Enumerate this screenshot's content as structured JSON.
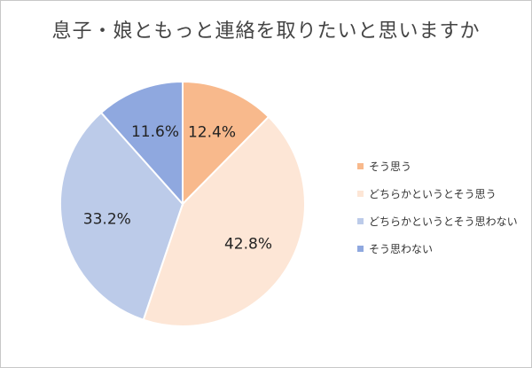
{
  "chart_data": {
    "type": "pie",
    "title": "息子・娘ともっと連絡を取りたいと思いますか",
    "slices": [
      {
        "name": "そう思う",
        "value": 12.4,
        "label": "12.4%",
        "color": "#f8b98c"
      },
      {
        "name": "どちらかというとそう思う",
        "value": 42.8,
        "label": "42.8%",
        "color": "#fde6d6"
      },
      {
        "name": "どちらかというとそう思わない",
        "value": 33.2,
        "label": "33.2%",
        "color": "#bccbe9"
      },
      {
        "name": "そう思わない",
        "value": 11.6,
        "label": "11.6%",
        "color": "#8fa8df"
      }
    ],
    "start": "12 o'clock",
    "direction": "clockwise",
    "legend_position": "right"
  }
}
